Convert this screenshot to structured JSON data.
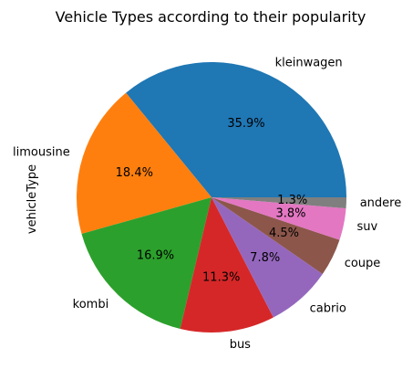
{
  "chart_data": {
    "type": "pie",
    "title": "Vehicle Types according to their popularity",
    "ylabel": "vehicleType",
    "labels": [
      "kleinwagen",
      "limousine",
      "kombi",
      "bus",
      "cabrio",
      "coupe",
      "suv",
      "andere"
    ],
    "values": [
      35.9,
      18.4,
      16.9,
      11.3,
      7.8,
      4.5,
      3.8,
      1.3
    ],
    "pct_labels": [
      "35.9%",
      "18.4%",
      "16.9%",
      "11.3%",
      "7.8%",
      "4.5%",
      "3.8%",
      "1.3%"
    ],
    "colors": [
      "#1f77b4",
      "#ff7f0e",
      "#2ca02c",
      "#d62728",
      "#9467bd",
      "#8c564b",
      "#e377c2",
      "#7f7f7f"
    ],
    "start_angle_deg": 0,
    "direction": "counterclockwise",
    "legend": "none"
  }
}
